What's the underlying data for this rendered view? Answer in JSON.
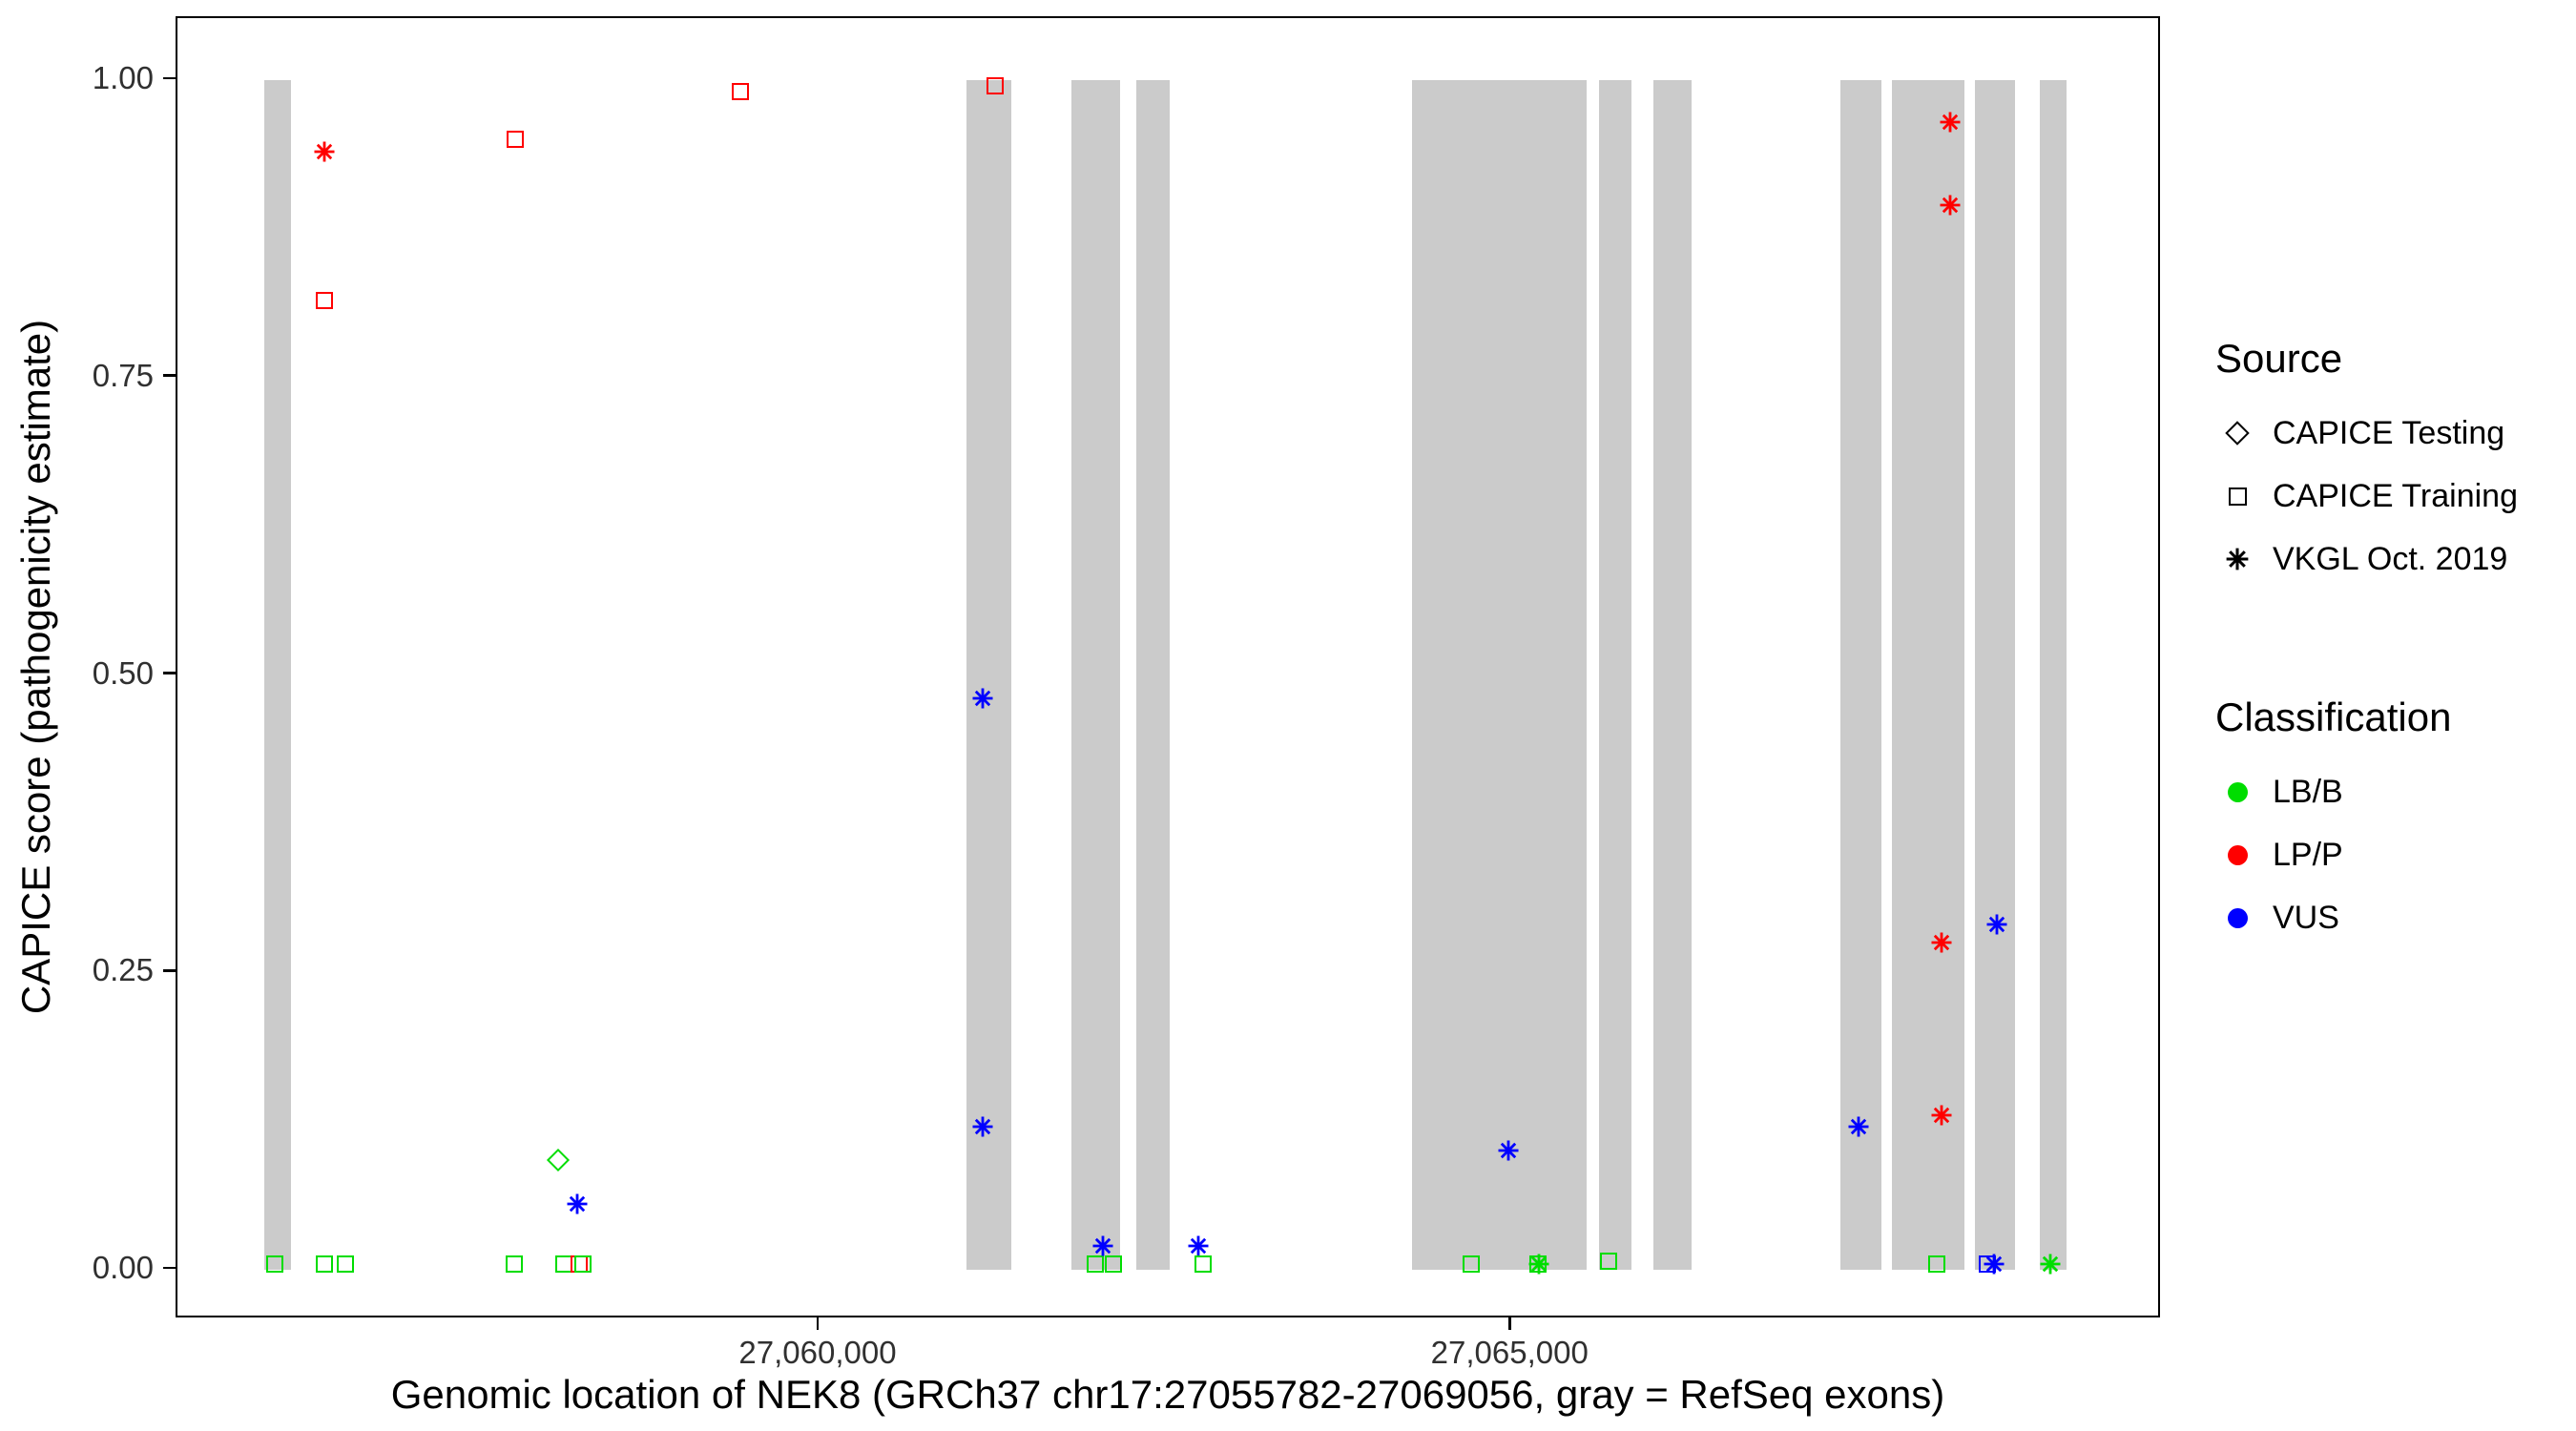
{
  "chart_data": {
    "type": "scatter",
    "title": "",
    "xlabel": "Genomic location of NEK8 (GRCh37 chr17:27055782-27069056, gray = RefSeq exons)",
    "ylabel": "CAPICE score (pathogenicity estimate)",
    "x_domain": [
      27055360,
      27069700
    ],
    "y_domain": [
      0,
      1
    ],
    "grid": "off",
    "legend_position": "right",
    "x_ticks": [
      {
        "value": 27060000,
        "label": "27,060,000"
      },
      {
        "value": 27065000,
        "label": "27,065,000"
      }
    ],
    "y_ticks": [
      {
        "value": 0.0,
        "label": "0.00"
      },
      {
        "value": 0.25,
        "label": "0.25"
      },
      {
        "value": 0.5,
        "label": "0.50"
      },
      {
        "value": 0.75,
        "label": "0.75"
      },
      {
        "value": 1.0,
        "label": "1.00"
      }
    ],
    "exon_color": "#cbcbcb",
    "exons": [
      [
        27055990,
        27056180
      ],
      [
        27061060,
        27061385
      ],
      [
        27061820,
        27062170
      ],
      [
        27062290,
        27062530
      ],
      [
        27064280,
        27065540
      ],
      [
        27065630,
        27065870
      ],
      [
        27066025,
        27066300
      ],
      [
        27067375,
        27067675
      ],
      [
        27067750,
        27068275
      ],
      [
        27068350,
        27068640
      ],
      [
        27068820,
        27069010
      ]
    ],
    "shape_map": {
      "CAPICE Testing": "diamond",
      "CAPICE Training": "square",
      "VKGL Oct. 2019": "asterisk"
    },
    "color_map": {
      "LB/B": "#00DD00",
      "LP/P": "#FF0000",
      "VUS": "#0000FF"
    },
    "points": [
      {
        "x": 27056060,
        "y": 0.005,
        "source": "CAPICE Training",
        "classification": "LB/B"
      },
      {
        "x": 27056420,
        "y": 0.005,
        "source": "CAPICE Training",
        "classification": "LB/B"
      },
      {
        "x": 27056570,
        "y": 0.005,
        "source": "CAPICE Training",
        "classification": "LB/B"
      },
      {
        "x": 27056420,
        "y": 0.94,
        "source": "VKGL Oct. 2019",
        "classification": "LP/P"
      },
      {
        "x": 27056420,
        "y": 0.815,
        "source": "CAPICE Training",
        "classification": "LP/P"
      },
      {
        "x": 27057800,
        "y": 0.95,
        "source": "CAPICE Training",
        "classification": "LP/P"
      },
      {
        "x": 27057795,
        "y": 0.005,
        "source": "CAPICE Training",
        "classification": "LB/B"
      },
      {
        "x": 27058110,
        "y": 0.092,
        "source": "CAPICE Testing",
        "classification": "LB/B"
      },
      {
        "x": 27058250,
        "y": 0.055,
        "source": "VKGL Oct. 2019",
        "classification": "VUS"
      },
      {
        "x": 27058150,
        "y": 0.005,
        "source": "CAPICE Training",
        "classification": "LB/B"
      },
      {
        "x": 27058260,
        "y": 0.005,
        "source": "CAPICE Training",
        "classification": "LP/P"
      },
      {
        "x": 27058290,
        "y": 0.005,
        "source": "CAPICE Training",
        "classification": "LB/B"
      },
      {
        "x": 27059430,
        "y": 0.99,
        "source": "CAPICE Training",
        "classification": "LP/P"
      },
      {
        "x": 27061265,
        "y": 0.995,
        "source": "CAPICE Training",
        "classification": "LP/P"
      },
      {
        "x": 27061180,
        "y": 0.48,
        "source": "VKGL Oct. 2019",
        "classification": "VUS"
      },
      {
        "x": 27061180,
        "y": 0.12,
        "source": "VKGL Oct. 2019",
        "classification": "VUS"
      },
      {
        "x": 27061990,
        "y": 0.005,
        "source": "CAPICE Training",
        "classification": "LB/B"
      },
      {
        "x": 27062050,
        "y": 0.02,
        "source": "VKGL Oct. 2019",
        "classification": "VUS"
      },
      {
        "x": 27062120,
        "y": 0.005,
        "source": "CAPICE Training",
        "classification": "LB/B"
      },
      {
        "x": 27062735,
        "y": 0.02,
        "source": "VKGL Oct. 2019",
        "classification": "VUS"
      },
      {
        "x": 27062770,
        "y": 0.005,
        "source": "CAPICE Training",
        "classification": "LB/B"
      },
      {
        "x": 27064710,
        "y": 0.005,
        "source": "CAPICE Training",
        "classification": "LB/B"
      },
      {
        "x": 27064975,
        "y": 0.1,
        "source": "VKGL Oct. 2019",
        "classification": "VUS"
      },
      {
        "x": 27065190,
        "y": 0.005,
        "source": "CAPICE Training",
        "classification": "LB/B"
      },
      {
        "x": 27065200,
        "y": 0.005,
        "source": "VKGL Oct. 2019",
        "classification": "LB/B"
      },
      {
        "x": 27065700,
        "y": 0.007,
        "source": "CAPICE Training",
        "classification": "LB/B"
      },
      {
        "x": 27067505,
        "y": 0.12,
        "source": "VKGL Oct. 2019",
        "classification": "VUS"
      },
      {
        "x": 27068070,
        "y": 0.005,
        "source": "CAPICE Training",
        "classification": "LB/B"
      },
      {
        "x": 27068170,
        "y": 0.965,
        "source": "VKGL Oct. 2019",
        "classification": "LP/P"
      },
      {
        "x": 27068170,
        "y": 0.895,
        "source": "VKGL Oct. 2019",
        "classification": "LP/P"
      },
      {
        "x": 27068110,
        "y": 0.275,
        "source": "VKGL Oct. 2019",
        "classification": "LP/P"
      },
      {
        "x": 27068505,
        "y": 0.29,
        "source": "VKGL Oct. 2019",
        "classification": "VUS"
      },
      {
        "x": 27068110,
        "y": 0.13,
        "source": "VKGL Oct. 2019",
        "classification": "LP/P"
      },
      {
        "x": 27068440,
        "y": 0.005,
        "source": "CAPICE Training",
        "classification": "VUS"
      },
      {
        "x": 27068490,
        "y": 0.005,
        "source": "VKGL Oct. 2019",
        "classification": "VUS"
      },
      {
        "x": 27068890,
        "y": 0.005,
        "source": "VKGL Oct. 2019",
        "classification": "LB/B"
      }
    ]
  },
  "legend": {
    "source": {
      "title": "Source",
      "items": [
        {
          "label": "CAPICE Testing",
          "shape": "diamond"
        },
        {
          "label": "CAPICE Training",
          "shape": "square"
        },
        {
          "label": "VKGL Oct. 2019",
          "shape": "asterisk"
        }
      ]
    },
    "classification": {
      "title": "Classification",
      "items": [
        {
          "label": "LB/B",
          "color": "#00DD00"
        },
        {
          "label": "LP/P",
          "color": "#FF0000"
        },
        {
          "label": "VUS",
          "color": "#0000FF"
        }
      ]
    }
  }
}
